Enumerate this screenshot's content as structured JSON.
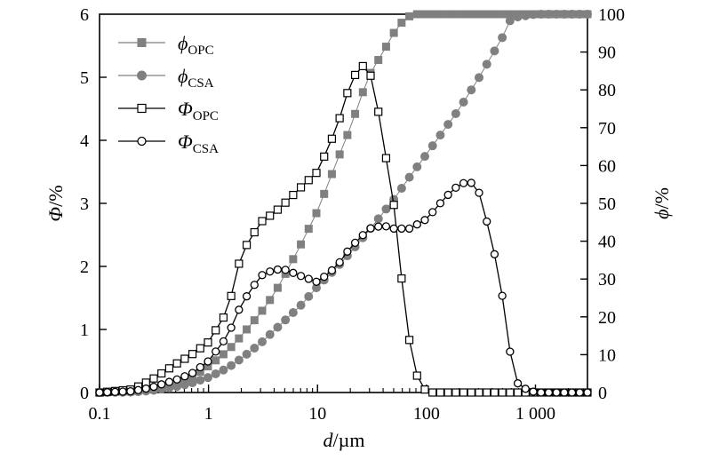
{
  "chart_data": {
    "type": "line",
    "xscale": "log",
    "xlim": [
      0.1,
      3000
    ],
    "ylim_left": [
      0,
      6
    ],
    "ylim_right": [
      0,
      100
    ],
    "x_ticks": [
      0.1,
      1,
      10,
      100,
      1000
    ],
    "x_tick_labels": [
      "0.1",
      "1",
      "10",
      "100",
      "1 000"
    ],
    "y_left_ticks": [
      "0",
      "1",
      "2",
      "3",
      "4",
      "5",
      "6"
    ],
    "y_right_ticks": [
      "0",
      "10",
      "20",
      "30",
      "40",
      "50",
      "60",
      "70",
      "80",
      "90",
      "100"
    ],
    "xlabel": {
      "var": "d",
      "unit": "/µm"
    },
    "ylabel_left": {
      "var": "Φ",
      "unit": "/%"
    },
    "ylabel_right": {
      "var": "ϕ",
      "unit": "/%"
    },
    "legend_position": "top-left",
    "series": [
      {
        "key": "phi_opc",
        "symbol": "ϕ",
        "subscript": "OPC",
        "axis": "right",
        "marker": "square-filled",
        "color": "#808080",
        "x": [
          0.1,
          0.2,
          0.3,
          0.5,
          0.7,
          1,
          1.5,
          2,
          3,
          4,
          5,
          7,
          10,
          15,
          20,
          25,
          30,
          40,
          50,
          60,
          70,
          80,
          100,
          200,
          500,
          1000,
          3000
        ],
        "y": [
          0,
          0.3,
          1,
          2.5,
          4,
          7,
          11,
          15,
          21,
          26,
          31,
          39,
          48,
          61,
          70,
          78,
          84,
          90,
          95,
          98,
          99.5,
          100,
          100,
          100,
          100,
          100,
          100
        ]
      },
      {
        "key": "phi_csa",
        "symbol": "ϕ",
        "subscript": "CSA",
        "axis": "right",
        "marker": "circle-filled",
        "color": "#808080",
        "x": [
          0.1,
          0.2,
          0.3,
          0.5,
          0.7,
          1,
          1.5,
          2,
          3,
          5,
          7,
          10,
          15,
          20,
          30,
          50,
          70,
          100,
          150,
          200,
          300,
          500,
          600,
          1000,
          3000
        ],
        "y": [
          0,
          0.1,
          0.5,
          1.5,
          2.5,
          4,
          6.5,
          9,
          13,
          19,
          23,
          28,
          33,
          37,
          43,
          51,
          57,
          63,
          70,
          75,
          83,
          94,
          99,
          100,
          100
        ]
      },
      {
        "key": "Phi_opc",
        "symbol": "Φ",
        "subscript": "OPC",
        "axis": "left",
        "marker": "square-open",
        "color": "#000000",
        "x": [
          0.1,
          0.2,
          0.3,
          0.5,
          0.7,
          1,
          1.5,
          2,
          3,
          4,
          5,
          7,
          10,
          15,
          20,
          25,
          30,
          35,
          40,
          50,
          60,
          70,
          80,
          100,
          200,
          500,
          1000,
          3000
        ],
        "y": [
          0,
          0.05,
          0.2,
          0.45,
          0.6,
          0.8,
          1.3,
          2.2,
          2.7,
          2.85,
          3.0,
          3.25,
          3.5,
          4.2,
          4.9,
          5.2,
          5.1,
          4.6,
          4.0,
          3.0,
          1.7,
          0.8,
          0.3,
          0,
          0,
          0,
          0,
          0
        ]
      },
      {
        "key": "Phi_csa",
        "symbol": "Φ",
        "subscript": "CSA",
        "axis": "left",
        "marker": "circle-open",
        "color": "#000000",
        "x": [
          0.1,
          0.2,
          0.3,
          0.5,
          0.7,
          1,
          1.5,
          2,
          3,
          4,
          5,
          7,
          10,
          15,
          20,
          30,
          40,
          50,
          70,
          100,
          150,
          200,
          250,
          300,
          400,
          500,
          600,
          700,
          1000,
          3000
        ],
        "y": [
          0,
          0.02,
          0.08,
          0.2,
          0.3,
          0.5,
          0.9,
          1.4,
          1.85,
          1.95,
          1.95,
          1.85,
          1.75,
          2.0,
          2.3,
          2.6,
          2.65,
          2.6,
          2.6,
          2.75,
          3.1,
          3.3,
          3.35,
          3.2,
          2.4,
          1.5,
          0.5,
          0.1,
          0,
          0
        ]
      }
    ]
  }
}
